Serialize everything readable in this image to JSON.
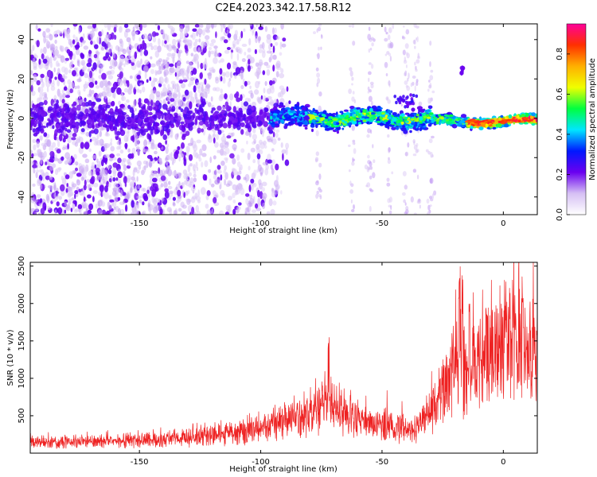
{
  "title": "C2E4.2023.342.17.58.R12",
  "chart_data": [
    {
      "type": "heatmap",
      "xlabel": "Height of straight line (km)",
      "ylabel": "Frequency (Hz)",
      "xlim": [
        -195,
        14
      ],
      "ylim": [
        -49,
        48
      ],
      "xticks": [
        -150,
        -100,
        -50,
        0
      ],
      "yticks": [
        -40,
        -20,
        0,
        20,
        40
      ],
      "grid": false,
      "colorbar": {
        "label": "Normalized spectral amplitude",
        "range": [
          0,
          0.95
        ],
        "ticks": [
          "0.0",
          "0.2",
          "0.4",
          "0.6",
          "0.8"
        ],
        "colors": [
          "#ffffff",
          "#d6c0f4",
          "#6a00f0",
          "#0018ff",
          "#00e6ff",
          "#00ff40",
          "#f0ff00",
          "#ffb000",
          "#ff3000",
          "#ff0099"
        ]
      },
      "features": {
        "band_center_hz": 0,
        "band_center_hz_right": -1.5,
        "noise_region_x": [
          -195,
          -93
        ],
        "band_region_x": [
          -93,
          14
        ],
        "side_lobe": {
          "x": -17,
          "y": 24
        }
      }
    },
    {
      "type": "line",
      "xlabel": "Height of straight line (km)",
      "ylabel": "SNR (10 * v/v)",
      "xlim": [
        -195,
        14
      ],
      "ylim": [
        0,
        2550
      ],
      "xticks": [
        -150,
        -100,
        -50,
        0
      ],
      "yticks": [
        500,
        1000,
        1500,
        2000,
        2500
      ],
      "grid": false,
      "series": [
        {
          "color": "#ee2222",
          "envelope_points": [
            [
              -195,
              130
            ],
            [
              -180,
              140
            ],
            [
              -160,
              150
            ],
            [
              -140,
              175
            ],
            [
              -125,
              200
            ],
            [
              -115,
              240
            ],
            [
              -105,
              280
            ],
            [
              -95,
              350
            ],
            [
              -85,
              420
            ],
            [
              -78,
              520
            ],
            [
              -73,
              640
            ],
            [
              -70,
              600
            ],
            [
              -65,
              460
            ],
            [
              -55,
              360
            ],
            [
              -45,
              320
            ],
            [
              -38,
              280
            ],
            [
              -33,
              380
            ],
            [
              -28,
              600
            ],
            [
              -24,
              850
            ],
            [
              -20,
              1100
            ],
            [
              -17,
              1400
            ],
            [
              -15,
              900
            ],
            [
              -12,
              1050
            ],
            [
              -8,
              1200
            ],
            [
              -5,
              1350
            ],
            [
              -2,
              1400
            ],
            [
              2,
              1450
            ],
            [
              6,
              1350
            ],
            [
              10,
              1300
            ],
            [
              14,
              1250
            ]
          ],
          "peaks": [
            [
              -72,
              1600
            ],
            [
              -48,
              880
            ],
            [
              -42,
              810
            ],
            [
              -18,
              2550
            ],
            [
              -14,
              2050
            ],
            [
              1,
              1880
            ],
            [
              -7,
              2000
            ],
            [
              8,
              2180
            ]
          ]
        }
      ]
    }
  ]
}
